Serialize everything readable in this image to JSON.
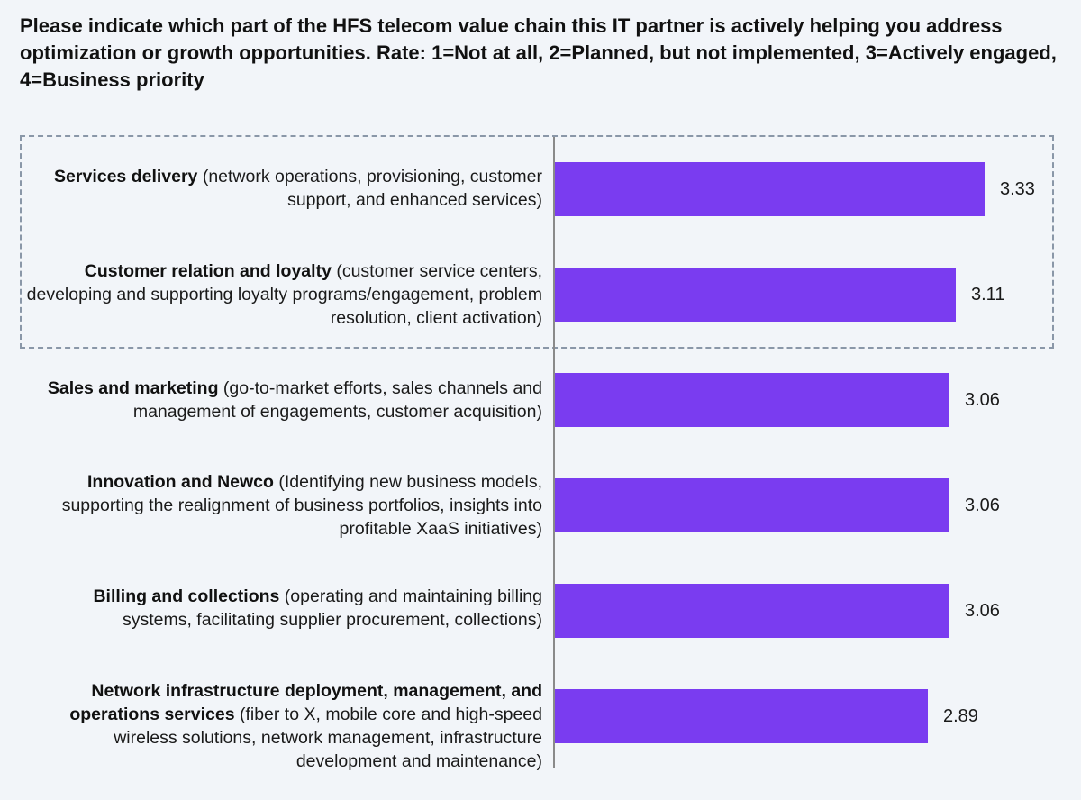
{
  "chart_data": {
    "type": "bar",
    "orientation": "horizontal",
    "title": "Please indicate which part of the HFS telecom value chain this IT partner is actively helping you address optimization or growth opportunities. Rate: 1=Not at all, 2=Planned, but not implemented, 3=Actively engaged, 4=Business priority",
    "categories": [
      {
        "bold": "Services delivery",
        "rest": " (network operations, provisioning, customer support, and enhanced services)"
      },
      {
        "bold": "Customer relation and loyalty",
        "rest": " (customer service centers, developing and supporting loyalty programs/engagement, problem resolution, client activation)"
      },
      {
        "bold": "Sales and marketing",
        "rest": " (go-to-market efforts, sales channels and management of engagements, customer acquisition)"
      },
      {
        "bold": "Innovation and Newco",
        "rest": " (Identifying new business models, supporting the realignment of business portfolios, insights into profitable XaaS initiatives)"
      },
      {
        "bold": "Billing and collections",
        "rest": " (operating and maintaining billing systems, facilitating supplier procurement, collections)"
      },
      {
        "bold": "Network infrastructure deployment, management, and operations services",
        "rest": " (fiber to X, mobile core and high-speed wireless solutions, network management, infrastructure development and maintenance)"
      }
    ],
    "values": [
      3.33,
      3.11,
      3.06,
      3.06,
      3.06,
      2.89
    ],
    "value_labels": [
      "3.33",
      "3.11",
      "3.06",
      "3.06",
      "3.06",
      "2.89"
    ],
    "bar_color": "#7a3cf0",
    "highlighted_categories": [
      0,
      1
    ],
    "grid": false,
    "legend": "none"
  }
}
